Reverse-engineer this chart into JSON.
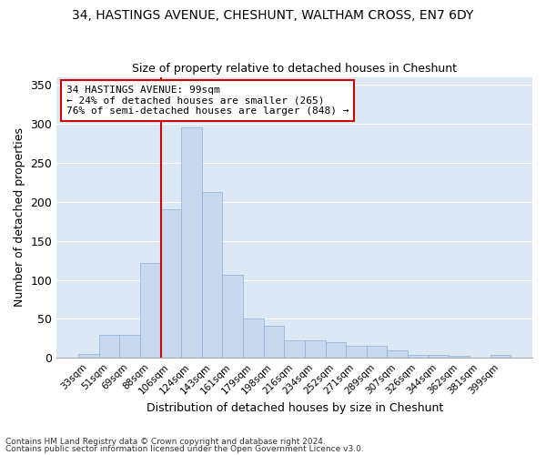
{
  "title1": "34, HASTINGS AVENUE, CHESHUNT, WALTHAM CROSS, EN7 6DY",
  "title2": "Size of property relative to detached houses in Cheshunt",
  "xlabel": "Distribution of detached houses by size in Cheshunt",
  "ylabel": "Number of detached properties",
  "categories": [
    "33sqm",
    "51sqm",
    "69sqm",
    "88sqm",
    "106sqm",
    "124sqm",
    "143sqm",
    "161sqm",
    "179sqm",
    "198sqm",
    "216sqm",
    "234sqm",
    "252sqm",
    "271sqm",
    "289sqm",
    "307sqm",
    "326sqm",
    "344sqm",
    "362sqm",
    "381sqm",
    "399sqm"
  ],
  "values": [
    5,
    29,
    29,
    122,
    190,
    295,
    212,
    106,
    50,
    41,
    23,
    22,
    20,
    15,
    15,
    10,
    4,
    4,
    3,
    0,
    4
  ],
  "bar_color": "#c8d8ef",
  "bar_edgecolor": "#8ab0d8",
  "red_line_bin_index": 4,
  "red_line_color": "#cc0000",
  "annotation_line1": "34 HASTINGS AVENUE: 99sqm",
  "annotation_line2": "← 24% of detached houses are smaller (265)",
  "annotation_line3": "76% of semi-detached houses are larger (848) →",
  "annotation_box_color": "#ffffff",
  "annotation_box_edgecolor": "#cc0000",
  "ylim": [
    0,
    360
  ],
  "yticks": [
    0,
    50,
    100,
    150,
    200,
    250,
    300,
    350
  ],
  "plot_bg_color": "#dde8f5",
  "fig_bg_color": "#ffffff",
  "footnote1": "Contains HM Land Registry data © Crown copyright and database right 2024.",
  "footnote2": "Contains public sector information licensed under the Open Government Licence v3.0."
}
